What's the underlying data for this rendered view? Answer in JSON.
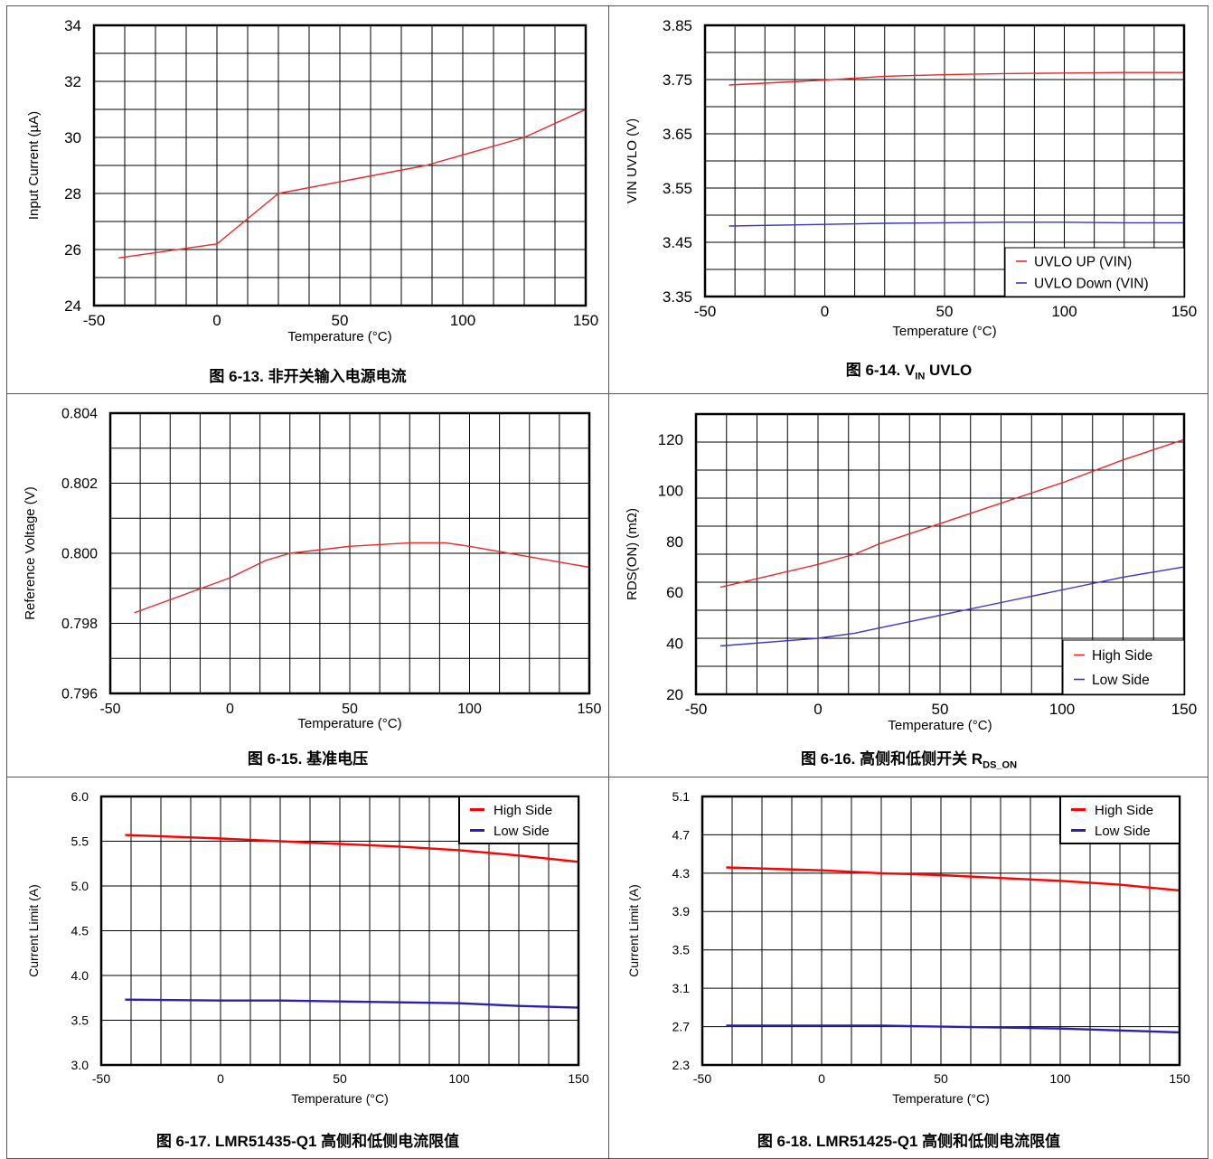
{
  "charts": [
    {
      "caption": "图 6-13. 非开关输入电源电流",
      "chart_data": {
        "type": "line",
        "xlabel": "Temperature (°C)",
        "ylabel": "Input Current (µA)",
        "xlim": [
          -50,
          150
        ],
        "ylim": [
          24,
          34
        ],
        "xticks": [
          "-50",
          "0",
          "50",
          "100",
          "150"
        ],
        "yticks": [
          "24",
          "26",
          "28",
          "30",
          "32",
          "34"
        ],
        "grid": true,
        "legend": null,
        "series": [
          {
            "color": "#e8282a",
            "x": [
              -40,
              0,
              25,
              85,
              125,
              150
            ],
            "values": [
              25.7,
              26.2,
              28.0,
              29.0,
              30.0,
              31.0
            ]
          }
        ]
      }
    },
    {
      "caption_main": "图 6-14. V",
      "caption_sub": "IN",
      "caption_tail": " UVLO",
      "chart_data": {
        "type": "line",
        "xlabel": "Temperature (°C)",
        "ylabel": "VIN UVLO (V)",
        "xlim": [
          -50,
          150
        ],
        "ylim": [
          3.35,
          3.85
        ],
        "xticks": [
          "-50",
          "0",
          "50",
          "100",
          "150"
        ],
        "yticks": [
          "3.35",
          "3.45",
          "3.55",
          "3.65",
          "3.75",
          "3.85"
        ],
        "grid": true,
        "legend": "bottom-right",
        "series": [
          {
            "name": "UVLO UP (VIN)",
            "color": "#e8282a",
            "x": [
              -40,
              0,
              25,
              50,
              75,
              100,
              125,
              150
            ],
            "values": [
              3.74,
              3.749,
              3.756,
              3.759,
              3.761,
              3.762,
              3.763,
              3.763
            ]
          },
          {
            "name": "UVLO Down (VIN)",
            "color": "#3a35c4",
            "x": [
              -40,
              0,
              25,
              50,
              75,
              100,
              125,
              150
            ],
            "values": [
              3.48,
              3.483,
              3.485,
              3.486,
              3.487,
              3.487,
              3.486,
              3.486
            ]
          }
        ]
      }
    },
    {
      "caption": "图 6-15. 基准电压",
      "chart_data": {
        "type": "line",
        "xlabel": "Temperature (°C)",
        "ylabel": "Reference Voltage (V)",
        "xlim": [
          -50,
          150
        ],
        "ylim": [
          0.796,
          0.804
        ],
        "xticks": [
          "-50",
          "0",
          "50",
          "100",
          "150"
        ],
        "yticks": [
          "0.796",
          "0.798",
          "0.800",
          "0.802",
          "0.804"
        ],
        "grid": true,
        "legend": null,
        "series": [
          {
            "color": "#e8282a",
            "x": [
              -40,
              0,
              15,
              25,
              50,
              75,
              90,
              100,
              125,
              150
            ],
            "values": [
              0.7983,
              0.7993,
              0.7998,
              0.8,
              0.8002,
              0.8003,
              0.8003,
              0.8002,
              0.7999,
              0.7996
            ]
          }
        ]
      }
    },
    {
      "caption_main": "图 6-16. 高侧和低侧开关 R",
      "caption_sub": "DS_ON",
      "caption_tail": "",
      "chart_data": {
        "type": "line",
        "xlabel": "Temperature (°C)",
        "ylabel": "RDS(ON)  (mΩ)",
        "xlim": [
          -50,
          150
        ],
        "ylim": [
          20,
          130
        ],
        "xticks": [
          "-50",
          "0",
          "50",
          "100",
          "150"
        ],
        "yticks": [
          "20",
          "40",
          "60",
          "80",
          "100",
          "120"
        ],
        "grid": true,
        "legend": "bottom-right",
        "series": [
          {
            "name": "High Side",
            "color": "#e8282a",
            "x": [
              -40,
              0,
              15,
              25,
              50,
              75,
              100,
              125,
              150
            ],
            "values": [
              62,
              71,
              75,
              79,
              87,
              95,
              103,
              112,
              120
            ]
          },
          {
            "name": "Low Side",
            "color": "#3a35c4",
            "x": [
              -40,
              0,
              15,
              25,
              50,
              75,
              100,
              125,
              150
            ],
            "values": [
              39,
              42,
              44,
              46,
              51,
              56,
              61,
              66,
              70
            ]
          }
        ]
      }
    },
    {
      "caption": "图 6-17. LMR51435-Q1 高侧和低侧电流限值",
      "chart_data": {
        "type": "line",
        "xlabel": "Temperature (°C)",
        "ylabel": "Current Limit (A)",
        "xlim": [
          -50,
          150
        ],
        "ylim": [
          3.0,
          6.0
        ],
        "xticks": [
          "-50",
          "0",
          "50",
          "100",
          "150"
        ],
        "yticks": [
          "3.0",
          "3.5",
          "4.0",
          "4.5",
          "5.0",
          "5.5",
          "6.0"
        ],
        "grid": true,
        "legend": "top-right",
        "series": [
          {
            "name": "High Side",
            "color": "#ff0000",
            "x": [
              -40,
              0,
              25,
              50,
              75,
              100,
              125,
              150
            ],
            "values": [
              5.57,
              5.53,
              5.5,
              5.47,
              5.44,
              5.4,
              5.34,
              5.27
            ]
          },
          {
            "name": "Low Side",
            "color": "#2b1fb0",
            "x": [
              -40,
              0,
              25,
              50,
              75,
              100,
              125,
              150
            ],
            "values": [
              3.73,
              3.72,
              3.72,
              3.71,
              3.7,
              3.69,
              3.66,
              3.64
            ]
          }
        ]
      }
    },
    {
      "caption": "图 6-18. LMR51425-Q1 高侧和低侧电流限值",
      "chart_data": {
        "type": "line",
        "xlabel": "Temperature (°C)",
        "ylabel": "Current Limit (A)",
        "xlim": [
          -50,
          150
        ],
        "ylim": [
          2.3,
          5.1
        ],
        "xticks": [
          "-50",
          "0",
          "50",
          "100",
          "150"
        ],
        "yticks": [
          "2.3",
          "2.7",
          "3.1",
          "3.5",
          "3.9",
          "4.3",
          "4.7",
          "5.1"
        ],
        "grid": true,
        "legend": "top-right",
        "series": [
          {
            "name": "High Side",
            "color": "#ff0000",
            "x": [
              -40,
              0,
              25,
              50,
              75,
              100,
              125,
              150
            ],
            "values": [
              4.36,
              4.33,
              4.3,
              4.28,
              4.25,
              4.22,
              4.18,
              4.12
            ]
          },
          {
            "name": "Low Side",
            "color": "#2b1fb0",
            "x": [
              -40,
              0,
              25,
              50,
              75,
              100,
              125,
              150
            ],
            "values": [
              2.71,
              2.71,
              2.71,
              2.7,
              2.69,
              2.68,
              2.66,
              2.64
            ]
          }
        ]
      }
    }
  ]
}
